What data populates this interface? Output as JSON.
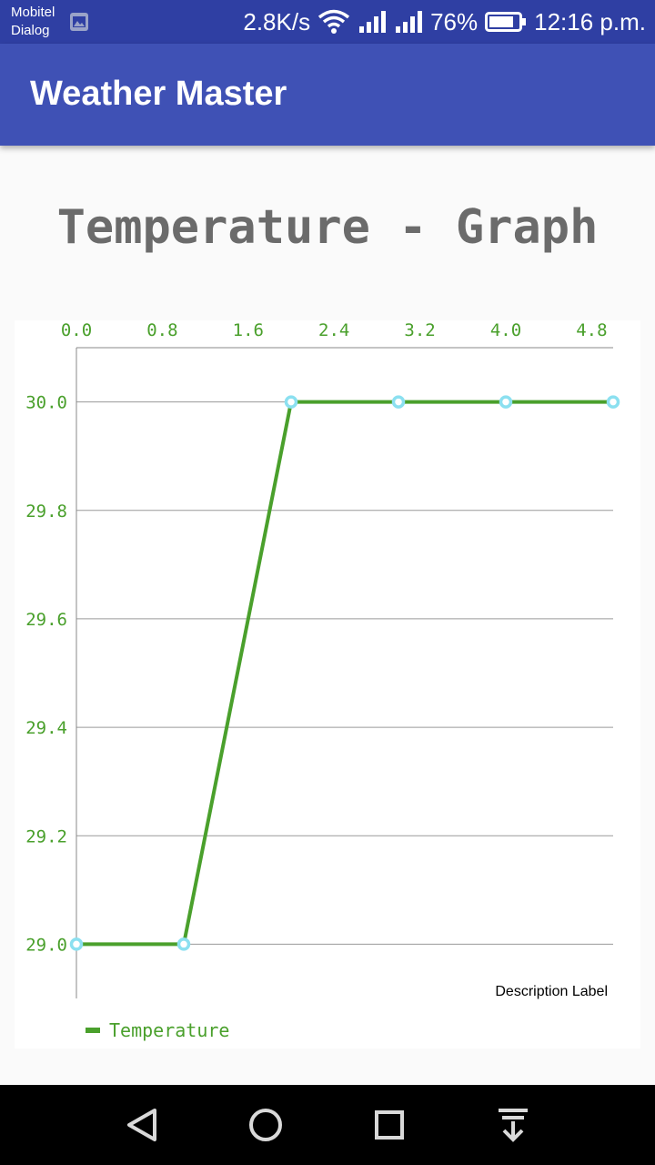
{
  "status_bar": {
    "carrier_line1": "Mobitel",
    "carrier_line2": "Dialog",
    "network_speed": "2.8K/s",
    "battery": "76%",
    "time": "12:16 p.m.",
    "icons": [
      "gallery-icon",
      "wifi-icon",
      "signal-icon",
      "signal-icon",
      "battery-icon"
    ]
  },
  "app_bar": {
    "title": "Weather Master"
  },
  "page": {
    "heading": "Temperature - Graph"
  },
  "chart_data": {
    "type": "line",
    "x": [
      0,
      1,
      2,
      3,
      4,
      5
    ],
    "series": [
      {
        "name": "Temperature",
        "values": [
          29.0,
          29.0,
          30.0,
          30.0,
          30.0,
          30.0
        ],
        "color": "#4aa02c",
        "marker_color": "#8be0f0"
      }
    ],
    "x_ticks": [
      "0.0",
      "0.8",
      "1.6",
      "2.4",
      "3.2",
      "4.0",
      "4.8"
    ],
    "y_ticks": [
      "29.0",
      "29.2",
      "29.4",
      "29.6",
      "29.8",
      "30.0"
    ],
    "xlim": [
      0,
      5
    ],
    "ylim": [
      28.9,
      30.1
    ],
    "x_axis_position": "top",
    "grid": "horizontal",
    "description": "Description Label",
    "legend_position": "bottom-left",
    "tick_color": "#4aa02c"
  },
  "nav_bar": {
    "icons": [
      "back-icon",
      "home-icon",
      "recents-icon",
      "notification-shade-icon"
    ]
  }
}
